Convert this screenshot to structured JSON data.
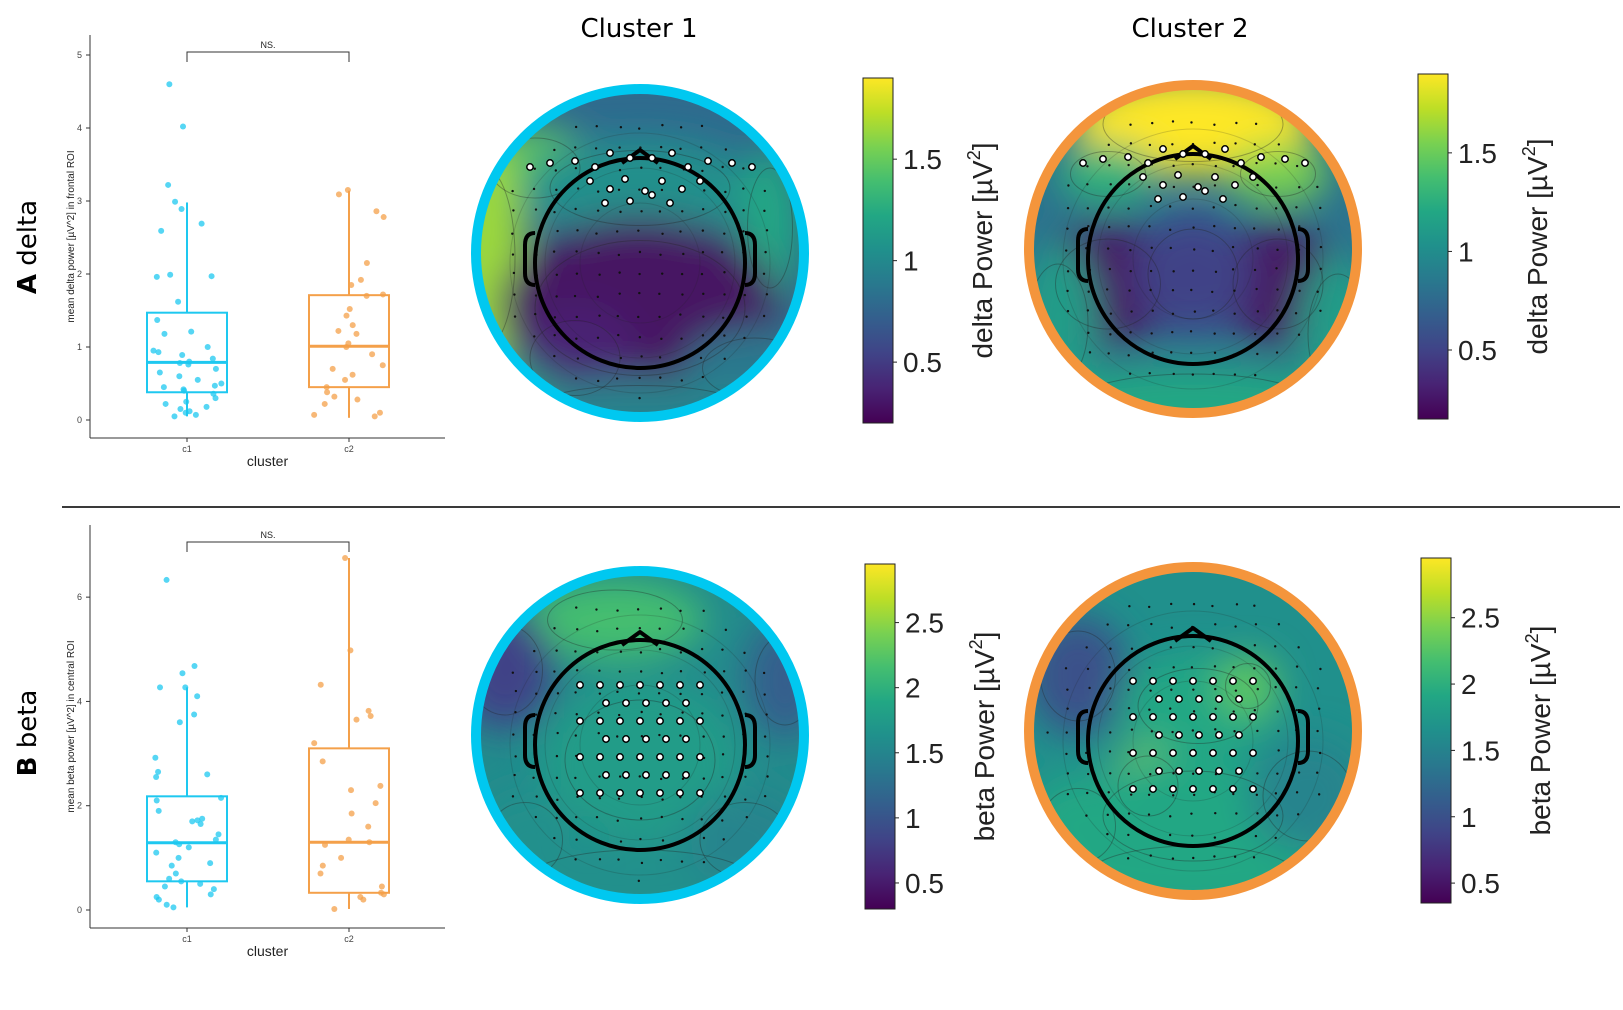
{
  "rows": [
    {
      "letter": "A",
      "word": "delta"
    },
    {
      "letter": "B",
      "word": "beta"
    }
  ],
  "columns": [
    "Cluster 1",
    "Cluster 2"
  ],
  "colors": {
    "c1": "#1ec8f0",
    "c2": "#f4a04a",
    "ring1": "#00c8f0",
    "ring2": "#f4953c"
  },
  "chart_data": [
    {
      "type": "box",
      "id": "delta-box",
      "xlabel": "cluster",
      "ylabel": "mean delta power [µV^2] in frontal ROI",
      "categories": [
        "c1",
        "c2"
      ],
      "ylim": [
        0,
        5
      ],
      "yticks": [
        0,
        1,
        2,
        3,
        4,
        5
      ],
      "significance": "NS.",
      "boxes": [
        {
          "name": "c1",
          "min": 0.05,
          "q1": 0.38,
          "median": 0.79,
          "q3": 1.47,
          "max": 2.98
        },
        {
          "name": "c2",
          "min": 0.03,
          "q1": 0.45,
          "median": 1.01,
          "q3": 1.71,
          "max": 3.14
        }
      ],
      "points": [
        {
          "name": "c1",
          "values": [
            4.6,
            4.02,
            3.22,
            2.99,
            2.89,
            2.69,
            2.59,
            1.99,
            1.97,
            1.96,
            1.62,
            1.37,
            1.21,
            1.18,
            1.0,
            0.95,
            0.93,
            0.89,
            0.84,
            0.8,
            0.78,
            0.76,
            0.7,
            0.65,
            0.6,
            0.55,
            0.5,
            0.47,
            0.45,
            0.42,
            0.4,
            0.36,
            0.3,
            0.25,
            0.22,
            0.18,
            0.15,
            0.12,
            0.1,
            0.07,
            0.05
          ]
        },
        {
          "name": "c2",
          "values": [
            3.15,
            3.09,
            2.86,
            2.78,
            2.15,
            1.92,
            1.85,
            1.72,
            1.7,
            1.52,
            1.43,
            1.3,
            1.22,
            1.18,
            1.05,
            1.0,
            0.9,
            0.75,
            0.7,
            0.62,
            0.55,
            0.45,
            0.38,
            0.32,
            0.28,
            0.22,
            0.1,
            0.07,
            0.05
          ]
        }
      ]
    },
    {
      "type": "box",
      "id": "beta-box",
      "xlabel": "cluster",
      "ylabel": "mean beta power [µV^2] in central ROI",
      "categories": [
        "c1",
        "c2"
      ],
      "ylim": [
        0,
        7
      ],
      "yticks": [
        0,
        2,
        4,
        6
      ],
      "significance": "NS.",
      "boxes": [
        {
          "name": "c1",
          "min": 0.05,
          "q1": 0.55,
          "median": 1.29,
          "q3": 2.18,
          "max": 4.27
        },
        {
          "name": "c2",
          "min": 0.02,
          "q1": 0.33,
          "median": 1.3,
          "q3": 3.1,
          "max": 6.75
        }
      ],
      "points": [
        {
          "name": "c1",
          "values": [
            6.33,
            4.68,
            4.54,
            4.27,
            4.27,
            4.1,
            3.75,
            3.6,
            2.92,
            2.65,
            2.6,
            2.55,
            2.15,
            2.1,
            1.9,
            1.75,
            1.72,
            1.7,
            1.65,
            1.45,
            1.35,
            1.3,
            1.26,
            1.2,
            1.1,
            1.0,
            0.9,
            0.85,
            0.7,
            0.6,
            0.55,
            0.5,
            0.45,
            0.4,
            0.3,
            0.25,
            0.2,
            0.1,
            0.05
          ]
        },
        {
          "name": "c2",
          "values": [
            6.75,
            4.98,
            4.32,
            3.82,
            3.72,
            3.65,
            3.2,
            2.85,
            2.38,
            2.3,
            2.05,
            1.85,
            1.6,
            1.35,
            1.3,
            1.25,
            1.0,
            0.85,
            0.7,
            0.45,
            0.33,
            0.3,
            0.25,
            0.2,
            0.02
          ]
        }
      ]
    },
    {
      "type": "colorbar",
      "id": "delta-cbar-1",
      "label": "delta Power [µV",
      "label_sup": "2",
      "label_end": "]",
      "range": [
        0.2,
        1.9
      ],
      "ticks": [
        "0.5",
        "1",
        "1.5"
      ],
      "tick_values": [
        0.5,
        1,
        1.5
      ]
    },
    {
      "type": "colorbar",
      "id": "delta-cbar-2",
      "label": "delta Power [µV",
      "label_sup": "2",
      "label_end": "]",
      "range": [
        0.15,
        1.9
      ],
      "ticks": [
        "0.5",
        "1",
        "1.5"
      ],
      "tick_values": [
        0.5,
        1,
        1.5
      ]
    },
    {
      "type": "colorbar",
      "id": "beta-cbar-1",
      "label": "beta Power [µV",
      "label_sup": "2",
      "label_end": "]",
      "range": [
        0.3,
        2.95
      ],
      "ticks": [
        "0.5",
        "1",
        "1.5",
        "2",
        "2.5"
      ],
      "tick_values": [
        0.5,
        1,
        1.5,
        2,
        2.5
      ]
    },
    {
      "type": "colorbar",
      "id": "beta-cbar-2",
      "label": "beta Power [µV",
      "label_sup": "2",
      "label_end": "]",
      "range": [
        0.35,
        2.95
      ],
      "ticks": [
        "0.5",
        "1",
        "1.5",
        "2",
        "2.5"
      ],
      "tick_values": [
        0.5,
        1,
        1.5,
        2,
        2.5
      ]
    }
  ]
}
